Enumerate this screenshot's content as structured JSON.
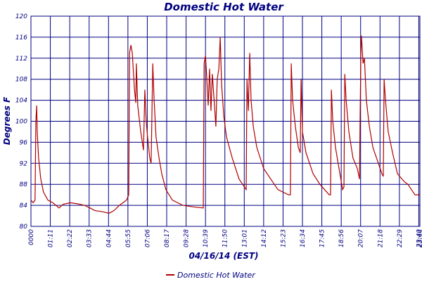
{
  "chart_data": {
    "type": "line",
    "title": "Domestic Hot Water",
    "y_label": "Degrees F",
    "x_label": "04/16/14 (EST)",
    "x": [
      0,
      8,
      15,
      18,
      21,
      23,
      28,
      36,
      46,
      62,
      80,
      103,
      118,
      144,
      170,
      196,
      216,
      234,
      260,
      286,
      304,
      324,
      350,
      358,
      361,
      366,
      371,
      379,
      384,
      386,
      391,
      402,
      412,
      417,
      422,
      427,
      435,
      440,
      446,
      451,
      458,
      469,
      479,
      494,
      518,
      556,
      595,
      631,
      634,
      639,
      644,
      649,
      654,
      659,
      664,
      672,
      677,
      682,
      688,
      693,
      698,
      706,
      716,
      737,
      762,
      788,
      791,
      796,
      801,
      806,
      814,
      827,
      852,
      878,
      904,
      943,
      950,
      953,
      958,
      968,
      979,
      986,
      989,
      994,
      1007,
      1033,
      1058,
      1092,
      1097,
      1100,
      1105,
      1115,
      1128,
      1141,
      1146,
      1149,
      1154,
      1164,
      1179,
      1195,
      1203,
      1205,
      1208,
      1210,
      1216,
      1221,
      1228,
      1239,
      1252,
      1272,
      1285,
      1290,
      1293,
      1298,
      1308,
      1324,
      1342,
      1367,
      1380,
      1393,
      1406,
      1424
    ],
    "series": [
      {
        "name": "Domestic Hot Water",
        "color": "#b00000",
        "values": [
          85,
          84.5,
          85,
          100,
          103,
          98,
          93,
          89,
          86.5,
          85,
          84.5,
          83.5,
          84.2,
          84.5,
          84.3,
          84,
          83.5,
          83,
          82.8,
          82.5,
          83,
          84,
          85,
          86,
          113,
          114.5,
          113,
          106,
          103.5,
          111,
          103,
          98,
          94.5,
          106,
          100,
          97,
          93,
          92,
          111,
          104,
          97,
          93,
          90,
          87,
          85,
          84,
          83.7,
          83.5,
          111,
          112.5,
          108,
          103,
          110,
          102,
          109,
          103,
          99,
          108,
          110,
          116,
          107,
          101,
          97,
          93,
          89,
          87,
          108,
          102,
          113,
          104,
          99,
          95,
          91,
          89,
          87,
          86,
          86,
          111,
          104,
          99,
          95,
          94,
          108,
          98,
          94,
          90,
          88,
          86,
          86,
          106,
          100,
          95,
          91,
          87,
          87.5,
          109,
          104,
          98,
          93,
          91,
          89,
          100,
          113,
          116.3,
          111,
          112,
          104,
          99,
          95,
          92,
          90,
          89.5,
          108,
          104,
          98,
          94,
          90,
          88.5,
          88,
          87,
          86,
          86
        ]
      }
    ],
    "xlim": [
      0,
      1424
    ],
    "xticks": [
      {
        "value": 0,
        "label": "0000"
      },
      {
        "value": 71,
        "label": "01:11"
      },
      {
        "value": 142,
        "label": "02:22"
      },
      {
        "value": 213,
        "label": "03:33"
      },
      {
        "value": 284,
        "label": "04:44"
      },
      {
        "value": 355,
        "label": "05:55"
      },
      {
        "value": 426,
        "label": "07:06"
      },
      {
        "value": 497,
        "label": "08:17"
      },
      {
        "value": 568,
        "label": "09:28"
      },
      {
        "value": 639,
        "label": "10:39"
      },
      {
        "value": 710,
        "label": "11:50"
      },
      {
        "value": 781,
        "label": "13:01"
      },
      {
        "value": 852,
        "label": "14:12"
      },
      {
        "value": 923,
        "label": "15:23"
      },
      {
        "value": 994,
        "label": "16:34"
      },
      {
        "value": 1065,
        "label": "17:45"
      },
      {
        "value": 1136,
        "label": "18:56"
      },
      {
        "value": 1207,
        "label": "20:07"
      },
      {
        "value": 1278,
        "label": "21:18"
      },
      {
        "value": 1349,
        "label": "22:29"
      },
      {
        "value": 1420,
        "label": "23:40"
      },
      {
        "value": 1424,
        "label": "23:44"
      }
    ],
    "ylim": [
      80,
      120
    ],
    "yticks": [
      80,
      84,
      88,
      92,
      96,
      100,
      104,
      108,
      112,
      116,
      120
    ],
    "grid": true
  }
}
